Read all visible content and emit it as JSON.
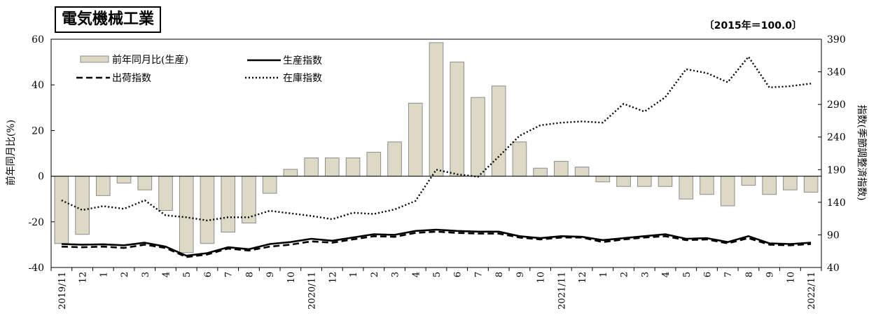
{
  "chart_data": {
    "type": "bar",
    "title": "電気機械工業",
    "note": "〔2015年＝100.0〕",
    "ylabel_left": "前年同月比(%)",
    "ylabel_right": "指数(季節調整済指数)",
    "ylim_left": [
      -40,
      60
    ],
    "yticks_left": [
      -40,
      -20,
      0,
      20,
      40,
      60
    ],
    "ylim_right": [
      40,
      390
    ],
    "yticks_right": [
      40,
      90,
      140,
      190,
      240,
      290,
      340,
      390
    ],
    "x_labels": [
      "2019/11",
      "12",
      "1",
      "2",
      "3",
      "4",
      "5",
      "6",
      "7",
      "8",
      "9",
      "10",
      "2020/11",
      "12",
      "1",
      "2",
      "3",
      "4",
      "5",
      "6",
      "7",
      "8",
      "9",
      "10",
      "2021/11",
      "12",
      "1",
      "2",
      "3",
      "4",
      "5",
      "6",
      "7",
      "8",
      "9",
      "10",
      "2022/11"
    ],
    "legend": {
      "bar": "前年同月比(生産)",
      "production": "生産指数",
      "shipment": "出荷指数",
      "inventory": "在庫指数"
    },
    "series": [
      {
        "name": "前年同月比(生産)",
        "kind": "bar",
        "axis": "left",
        "color": "#ddd9c4",
        "values": [
          -29.5,
          -25.5,
          -8.5,
          -3,
          -6,
          -15,
          -33.5,
          -29.5,
          -24.5,
          -20.5,
          -7.5,
          3,
          8,
          8,
          8,
          10.5,
          15,
          32,
          58.5,
          50,
          34.5,
          39.5,
          15,
          3.5,
          6.5,
          4,
          -2.5,
          -4.5,
          -4.5,
          -4.5,
          -10,
          -8,
          -13,
          -4,
          -8,
          -6,
          -7
        ]
      },
      {
        "name": "生産指数",
        "kind": "line",
        "axis": "right",
        "color": "#000000",
        "style": "solid",
        "values": [
          76,
          75,
          75.5,
          74,
          78,
          72,
          58,
          62,
          71,
          68,
          76,
          79,
          84,
          81,
          86,
          91,
          90,
          96,
          98,
          96,
          95,
          95,
          88,
          85,
          88,
          87,
          82,
          85,
          88,
          91,
          84,
          85,
          79,
          88,
          77,
          76,
          78
        ]
      },
      {
        "name": "出荷指数",
        "kind": "line",
        "axis": "right",
        "color": "#000000",
        "style": "dashed",
        "values": [
          72,
          71,
          72,
          70,
          75,
          70,
          56,
          60,
          69,
          66,
          72,
          75,
          80,
          78,
          83,
          88,
          87,
          93,
          95,
          93,
          92,
          92,
          86,
          83,
          86,
          86,
          79,
          83,
          86,
          88,
          82,
          83,
          77,
          85,
          75,
          74,
          76
        ]
      },
      {
        "name": "在庫指数",
        "kind": "line",
        "axis": "right",
        "color": "#000000",
        "style": "dotted",
        "values": [
          143,
          128,
          134,
          130,
          143,
          120,
          117,
          112,
          117,
          117,
          127,
          123,
          119,
          114,
          124,
          122,
          129,
          142,
          190,
          183,
          179,
          210,
          242,
          258,
          262,
          264,
          262,
          291,
          279,
          301,
          344,
          338,
          324,
          363,
          316,
          318,
          322
        ]
      }
    ]
  }
}
